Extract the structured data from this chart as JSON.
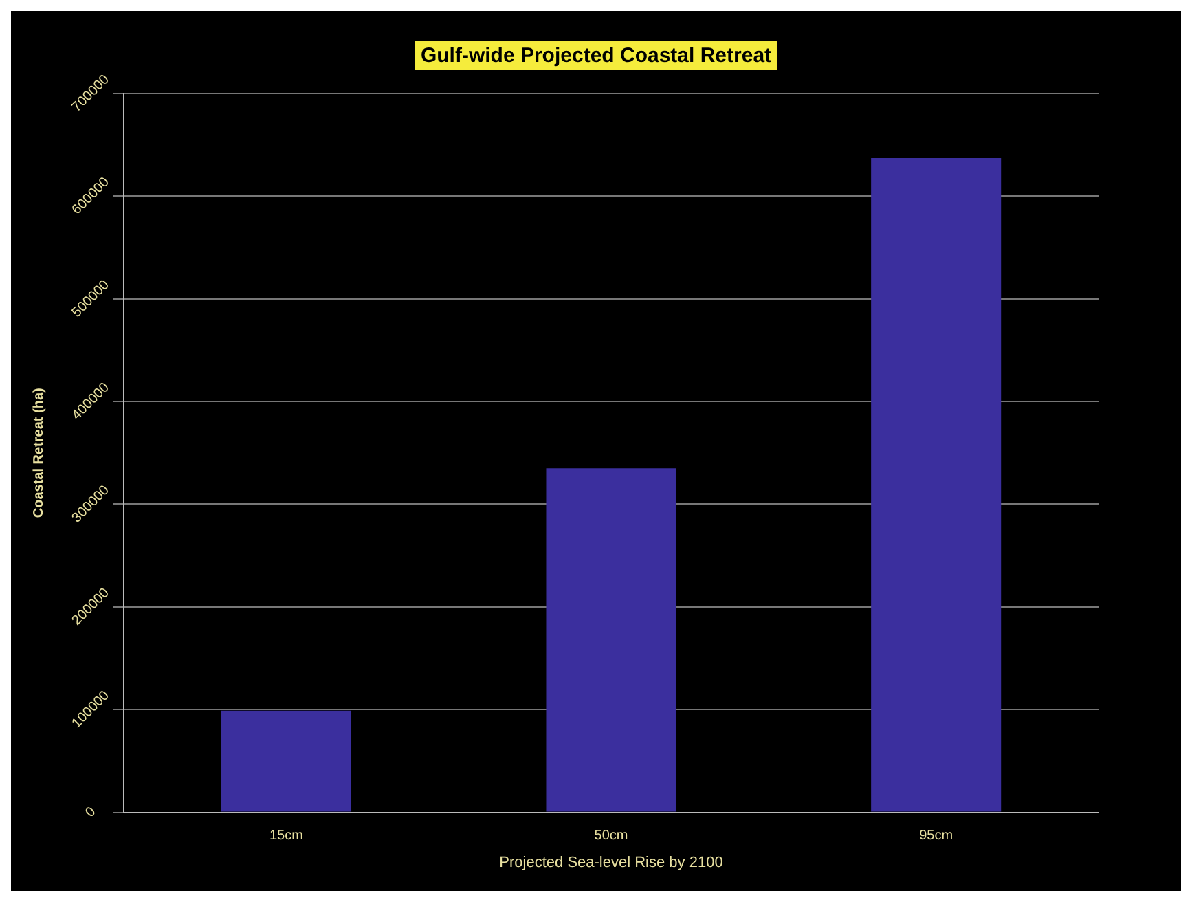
{
  "chart_data": {
    "type": "bar",
    "title": "Gulf-wide Projected Coastal Retreat",
    "xlabel": "Projected Sea-level Rise by 2100",
    "ylabel": "Coastal Retreat (ha)",
    "categories": [
      "15cm",
      "50cm",
      "95cm"
    ],
    "values": [
      99000,
      335000,
      637000
    ],
    "color": "#3b2f9e",
    "ylim": [
      0,
      700000
    ],
    "yticks": [
      0,
      100000,
      200000,
      300000,
      400000,
      500000,
      600000,
      700000
    ],
    "grid": "y"
  }
}
